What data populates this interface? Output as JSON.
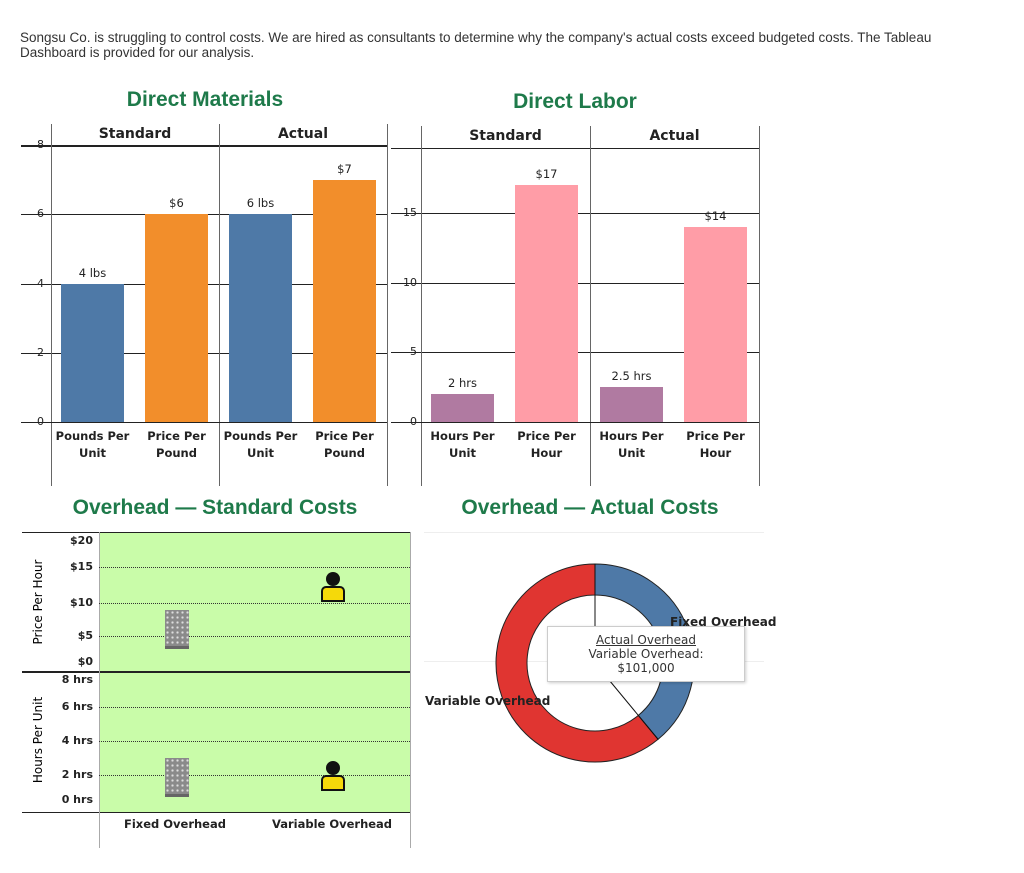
{
  "intro": "Songsu Co. is struggling to control costs. We are hired as consultants to determine why the company's actual costs exceed budgeted costs. The Tableau Dashboard is provided for our analysis.",
  "colors": {
    "title": "#1e7a4a",
    "pounds": "#4e79a7",
    "price_dm": "#f28e2b",
    "hours": "#b07aa1",
    "price_dl": "#ff9da7",
    "overhead_bg": "#c9fca9",
    "fixed": "#4e79a7",
    "variable": "#e03531"
  },
  "dm": {
    "title": "Direct Materials",
    "panels": [
      "Standard",
      "Actual"
    ],
    "yticks": [
      "0",
      "2",
      "4",
      "6",
      "8"
    ],
    "ylim": [
      0,
      8
    ],
    "bars": [
      {
        "panel": "Standard",
        "category": "Pounds Per Unit",
        "value": 4,
        "label": "4 lbs"
      },
      {
        "panel": "Standard",
        "category": "Price Per Pound",
        "value": 6,
        "label": "$6"
      },
      {
        "panel": "Actual",
        "category": "Pounds Per Unit",
        "value": 6,
        "label": "6 lbs"
      },
      {
        "panel": "Actual",
        "category": "Price Per Pound",
        "value": 7,
        "label": "$7"
      }
    ]
  },
  "dl": {
    "title": "Direct Labor",
    "panels": [
      "Standard",
      "Actual"
    ],
    "yticks": [
      "0",
      "5",
      "10",
      "15"
    ],
    "ylim": [
      0,
      20
    ],
    "bars": [
      {
        "panel": "Standard",
        "category": "Hours Per Unit",
        "value": 2,
        "label": "2 hrs"
      },
      {
        "panel": "Standard",
        "category": "Price Per Hour",
        "value": 17,
        "label": "$17"
      },
      {
        "panel": "Actual",
        "category": "Hours Per Unit",
        "value": 2.5,
        "label": "2.5 hrs"
      },
      {
        "panel": "Actual",
        "category": "Price Per Hour",
        "value": 14,
        "label": "$14"
      }
    ]
  },
  "oh_std": {
    "title": "Overhead — Standard Costs",
    "price_axis": "Price Per Hour",
    "hours_axis": "Hours Per Unit",
    "price_ticks": [
      "$20",
      "$15",
      "$10",
      "$5",
      "$0"
    ],
    "hours_ticks": [
      "8 hrs",
      "6 hrs",
      "4 hrs",
      "2 hrs",
      "0 hrs"
    ],
    "categories": [
      "Fixed Overhead",
      "Variable Overhead"
    ],
    "icons": [
      "building-icon",
      "worker-icon"
    ]
  },
  "oh_act": {
    "title": "Overhead — Actual Costs",
    "fixed_label": "Fixed Overhead",
    "variable_label": "Variable Overhead",
    "fixed_share": 0.39,
    "tooltip": {
      "title": "Actual Overhead",
      "text": "Variable Overhead: $101,000"
    }
  }
}
